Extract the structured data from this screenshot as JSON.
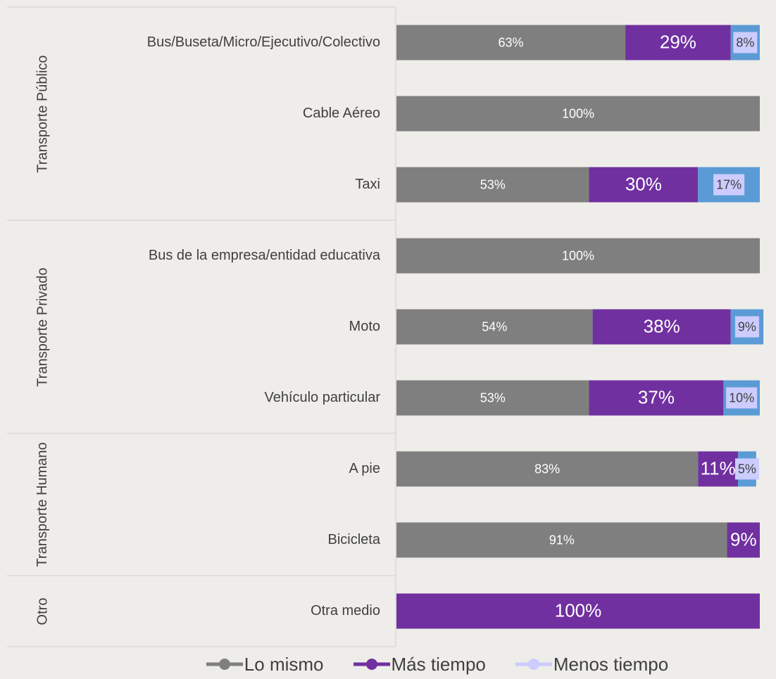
{
  "chart_data": {
    "type": "bar",
    "orientation": "horizontal",
    "stacked": true,
    "groups": [
      {
        "name": "Transporte Público",
        "categories": [
          "Bus/Buseta/Micro/Ejecutivo/Colectivo",
          "Cable Aéreo",
          "Taxi"
        ]
      },
      {
        "name": "Transporte Privado",
        "categories": [
          "Bus de la empresa/entidad educativa",
          "Moto",
          "Vehículo particular"
        ]
      },
      {
        "name": "Transporte Humano",
        "categories": [
          "A pie",
          "Bicicleta"
        ]
      },
      {
        "name": "Otro",
        "categories": [
          "Otra medio"
        ]
      }
    ],
    "series": [
      {
        "name": "Lo mismo",
        "color": "#7f7f7f",
        "values": [
          63,
          100,
          53,
          100,
          54,
          53,
          83,
          91,
          0
        ],
        "value_labels": [
          "63%",
          "100%",
          "53%",
          "100%",
          "54%",
          "53%",
          "83%",
          "91%",
          null
        ]
      },
      {
        "name": "Más tiempo",
        "color": "#7030a0",
        "values": [
          29,
          0,
          30,
          0,
          38,
          37,
          11,
          9,
          100
        ],
        "value_labels": [
          "29%",
          null,
          "30%",
          null,
          "38%",
          "37%",
          "11%",
          "9%",
          "100%"
        ]
      },
      {
        "name": "Menos tiempo",
        "color": "#5b9bd5",
        "label_fill": "#ccccff",
        "values": [
          8,
          0,
          17,
          0,
          9,
          10,
          5,
          0,
          0
        ],
        "value_labels": [
          "8%",
          null,
          "17%",
          null,
          "9%",
          "10%",
          "5%",
          null,
          null
        ]
      }
    ],
    "xlim": [
      0,
      100
    ],
    "legend": "bottom"
  }
}
